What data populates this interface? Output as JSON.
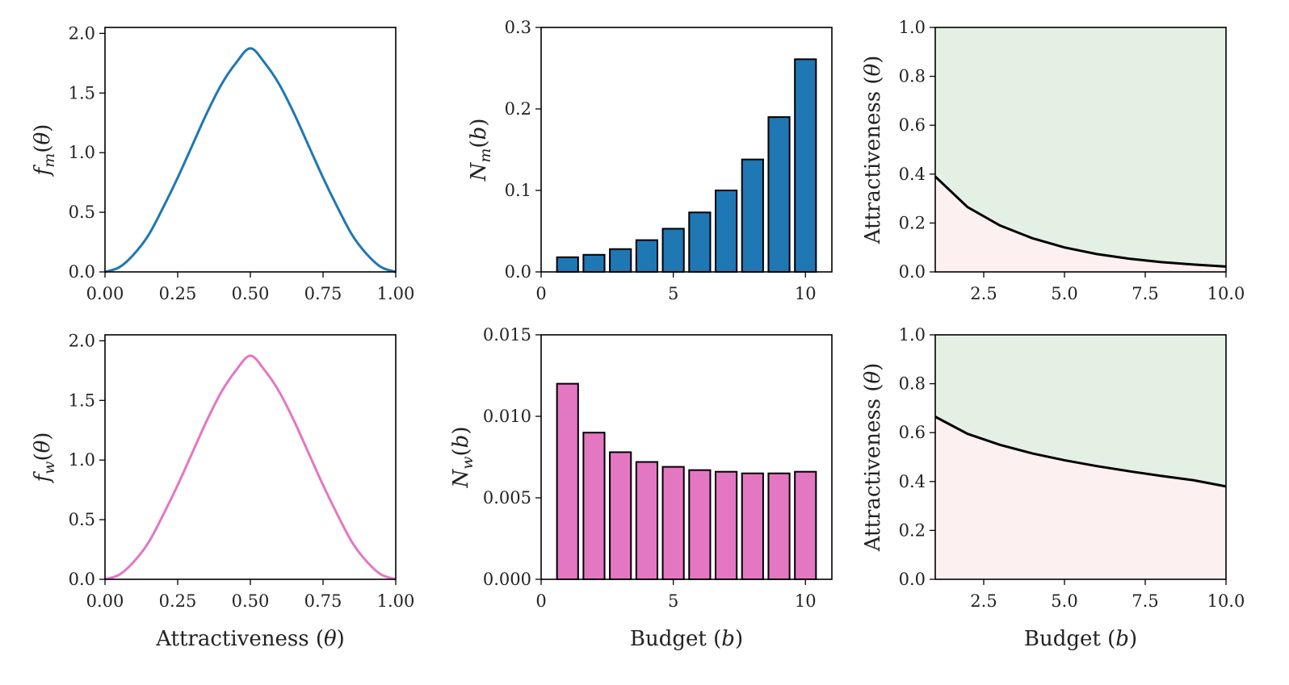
{
  "chart_data": [
    {
      "id": "fm",
      "type": "line",
      "ylabel": "f_m(θ)",
      "xlabel": "",
      "xlim": [
        0,
        1
      ],
      "ylim": [
        0,
        2.05
      ],
      "xticks": [
        "0.00",
        "0.25",
        "0.50",
        "0.75",
        "1.00"
      ],
      "yticks": [
        "0.0",
        "0.5",
        "1.0",
        "1.5",
        "2.0"
      ],
      "x": [
        0.0,
        0.05,
        0.1,
        0.15,
        0.2,
        0.25,
        0.3,
        0.35,
        0.4,
        0.45,
        0.5,
        0.55,
        0.6,
        0.65,
        0.7,
        0.75,
        0.8,
        0.85,
        0.9,
        0.95,
        1.0
      ],
      "y": [
        0.0,
        0.04,
        0.15,
        0.31,
        0.54,
        0.79,
        1.06,
        1.33,
        1.57,
        1.75,
        1.875,
        1.75,
        1.57,
        1.33,
        1.06,
        0.79,
        0.54,
        0.31,
        0.15,
        0.04,
        0.0
      ],
      "color": "#1f77b4"
    },
    {
      "id": "nm",
      "type": "bar",
      "ylabel": "N_m(b)",
      "xlabel": "",
      "xlim": [
        0,
        11
      ],
      "ylim": [
        0,
        0.3
      ],
      "xticks": [
        "0",
        "5",
        "10"
      ],
      "yticks": [
        "0.0",
        "0.1",
        "0.2",
        "0.3"
      ],
      "categories": [
        1,
        2,
        3,
        4,
        5,
        6,
        7,
        8,
        9,
        10
      ],
      "values": [
        0.018,
        0.021,
        0.028,
        0.039,
        0.053,
        0.073,
        0.1,
        0.138,
        0.19,
        0.261
      ],
      "color": "#1f77b4"
    },
    {
      "id": "thr_m",
      "type": "area",
      "ylabel": "Attractiveness (θ)",
      "xlabel": "",
      "xlim": [
        1,
        10
      ],
      "ylim": [
        0,
        1.0
      ],
      "xticks": [
        "2.5",
        "5.0",
        "7.5",
        "10.0"
      ],
      "yticks": [
        "0.0",
        "0.2",
        "0.4",
        "0.6",
        "0.8",
        "1.0"
      ],
      "x": [
        1,
        2,
        3,
        4,
        5,
        6,
        7,
        8,
        9,
        10
      ],
      "y": [
        0.39,
        0.265,
        0.19,
        0.138,
        0.1,
        0.073,
        0.054,
        0.04,
        0.03,
        0.022
      ],
      "above_color": "#e4f0e4",
      "below_color": "#fdf0f0"
    },
    {
      "id": "fw",
      "type": "line",
      "ylabel": "f_w(θ)",
      "xlabel": "Attractiveness (θ)",
      "xlim": [
        0,
        1
      ],
      "ylim": [
        0,
        2.05
      ],
      "xticks": [
        "0.00",
        "0.25",
        "0.50",
        "0.75",
        "1.00"
      ],
      "yticks": [
        "0.0",
        "0.5",
        "1.0",
        "1.5",
        "2.0"
      ],
      "x": [
        0.0,
        0.05,
        0.1,
        0.15,
        0.2,
        0.25,
        0.3,
        0.35,
        0.4,
        0.45,
        0.5,
        0.55,
        0.6,
        0.65,
        0.7,
        0.75,
        0.8,
        0.85,
        0.9,
        0.95,
        1.0
      ],
      "y": [
        0.0,
        0.04,
        0.15,
        0.31,
        0.54,
        0.79,
        1.06,
        1.33,
        1.57,
        1.75,
        1.875,
        1.75,
        1.57,
        1.33,
        1.06,
        0.79,
        0.54,
        0.31,
        0.15,
        0.04,
        0.0
      ],
      "color": "#e377c2"
    },
    {
      "id": "nw",
      "type": "bar",
      "ylabel": "N_w(b)",
      "xlabel": "Budget (b)",
      "xlim": [
        0,
        11
      ],
      "ylim": [
        0,
        0.015
      ],
      "xticks": [
        "0",
        "5",
        "10"
      ],
      "yticks": [
        "0.000",
        "0.005",
        "0.010",
        "0.015"
      ],
      "categories": [
        1,
        2,
        3,
        4,
        5,
        6,
        7,
        8,
        9,
        10
      ],
      "values": [
        0.012,
        0.009,
        0.0078,
        0.0072,
        0.0069,
        0.0067,
        0.0066,
        0.0065,
        0.0065,
        0.0066
      ],
      "color": "#e377c2"
    },
    {
      "id": "thr_w",
      "type": "area",
      "ylabel": "Attractiveness (θ)",
      "xlabel": "Budget (b)",
      "xlim": [
        1,
        10
      ],
      "ylim": [
        0,
        1.0
      ],
      "xticks": [
        "2.5",
        "5.0",
        "7.5",
        "10.0"
      ],
      "yticks": [
        "0.0",
        "0.2",
        "0.4",
        "0.6",
        "0.8",
        "1.0"
      ],
      "x": [
        1,
        2,
        3,
        4,
        5,
        6,
        7,
        8,
        9,
        10
      ],
      "y": [
        0.665,
        0.595,
        0.55,
        0.515,
        0.487,
        0.463,
        0.442,
        0.423,
        0.405,
        0.38
      ],
      "above_color": "#e4f0e4",
      "below_color": "#fdf0f0"
    }
  ]
}
